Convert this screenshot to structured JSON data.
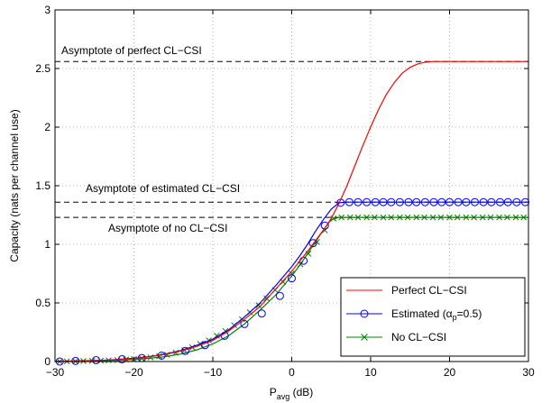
{
  "chart_data": {
    "type": "line",
    "xlabel": "P",
    "xlabel_sub": "avg",
    "xlabel_unit": " (dB)",
    "ylabel": "Capacity (nats per channel use)",
    "xlim": [
      -30,
      30
    ],
    "ylim": [
      0,
      3
    ],
    "xticks": [
      -30,
      -20,
      -10,
      0,
      10,
      20,
      30
    ],
    "yticks": [
      0,
      0.5,
      1,
      1.5,
      2,
      2.5,
      3
    ],
    "xtick_labels": [
      "−30",
      "−20",
      "−10",
      "0",
      "10",
      "20",
      "30"
    ],
    "ytick_labels": [
      "0",
      "0.5",
      "1",
      "1.5",
      "2",
      "2.5",
      "3"
    ],
    "grid": true,
    "legend_position": "bottom-right",
    "asymptotes": [
      {
        "label": "Asymptote of perfect CL−CSI",
        "y": 2.56
      },
      {
        "label": "Asymptote of estimated CL−CSI",
        "y": 1.36
      },
      {
        "label": "Asymptote of no CL−CSI",
        "y": 1.23
      }
    ],
    "series": [
      {
        "name": "Perfect CL−CSI",
        "color": "#ff0000",
        "marker": "none",
        "x": [
          -30,
          -28,
          -26,
          -24,
          -22,
          -20,
          -18,
          -16,
          -14,
          -12,
          -10,
          -8,
          -6,
          -4,
          -2,
          0,
          2,
          4,
          5,
          6,
          7,
          8,
          9,
          10,
          11,
          12,
          13,
          14,
          15,
          16,
          17,
          18,
          19,
          20,
          22,
          25,
          30
        ],
        "y": [
          0.0,
          0.003,
          0.006,
          0.01,
          0.015,
          0.025,
          0.04,
          0.06,
          0.09,
          0.13,
          0.18,
          0.26,
          0.36,
          0.47,
          0.62,
          0.77,
          0.94,
          1.12,
          1.22,
          1.35,
          1.5,
          1.67,
          1.84,
          2.0,
          2.15,
          2.28,
          2.38,
          2.46,
          2.51,
          2.54,
          2.555,
          2.56,
          2.56,
          2.56,
          2.56,
          2.56,
          2.56
        ]
      },
      {
        "name": "Estimated (αp=0.5)",
        "legend_main": "Estimated (α",
        "legend_sub": "p",
        "legend_tail": "=0.5)",
        "color": "#0000ff",
        "marker": "circle",
        "x": [
          -30,
          -28,
          -26,
          -24,
          -22,
          -20,
          -18,
          -16,
          -14,
          -12,
          -10,
          -8,
          -6,
          -4,
          -2,
          0,
          1,
          2,
          3,
          4,
          5,
          6,
          7,
          8,
          10,
          12,
          14,
          16,
          18,
          20,
          22,
          24,
          26,
          28,
          30
        ],
        "y": [
          0.0,
          0.004,
          0.007,
          0.011,
          0.018,
          0.028,
          0.043,
          0.064,
          0.095,
          0.14,
          0.19,
          0.27,
          0.38,
          0.5,
          0.65,
          0.81,
          0.9,
          1.0,
          1.11,
          1.21,
          1.3,
          1.355,
          1.36,
          1.36,
          1.36,
          1.36,
          1.36,
          1.36,
          1.36,
          1.36,
          1.36,
          1.36,
          1.36,
          1.36,
          1.36
        ],
        "marker_x": [
          -29.4,
          -27.4,
          -24.8,
          -21.5,
          -19.0,
          -16.5,
          -13.5,
          -11.0,
          -8.5,
          -6.0,
          -3.8,
          -1.5,
          0.0,
          1.5,
          2.7,
          4.2,
          6.2,
          7.3,
          8.4,
          9.5,
          10.6,
          11.6,
          12.6,
          13.7,
          14.8,
          15.8,
          16.9,
          18.0,
          19.0,
          20.0,
          21.1,
          22.1,
          23.2,
          24.3,
          25.3,
          26.4,
          27.4,
          28.5,
          29.6
        ],
        "marker_y": [
          0.0,
          0.005,
          0.012,
          0.02,
          0.03,
          0.05,
          0.09,
          0.14,
          0.22,
          0.32,
          0.41,
          0.56,
          0.71,
          0.86,
          1.01,
          1.16,
          1.355,
          1.36,
          1.36,
          1.36,
          1.36,
          1.36,
          1.36,
          1.36,
          1.36,
          1.36,
          1.36,
          1.36,
          1.36,
          1.36,
          1.36,
          1.36,
          1.36,
          1.36,
          1.36,
          1.36,
          1.36,
          1.36,
          1.36
        ]
      },
      {
        "name": "No CL−CSI",
        "color": "#008000",
        "marker": "x",
        "x": [
          -30,
          -28,
          -26,
          -24,
          -22,
          -20,
          -18,
          -16,
          -14,
          -12,
          -10,
          -8,
          -6,
          -4,
          -2,
          0,
          1,
          2,
          3,
          4,
          5,
          6,
          8,
          10,
          12,
          14,
          16,
          18,
          20,
          22,
          24,
          26,
          28,
          30
        ],
        "y": [
          0.0,
          0.002,
          0.004,
          0.007,
          0.011,
          0.018,
          0.028,
          0.042,
          0.065,
          0.1,
          0.15,
          0.22,
          0.32,
          0.44,
          0.57,
          0.73,
          0.82,
          0.92,
          1.02,
          1.12,
          1.21,
          1.23,
          1.23,
          1.23,
          1.23,
          1.23,
          1.23,
          1.23,
          1.23,
          1.23,
          1.23,
          1.23,
          1.23,
          1.23
        ],
        "marker_x": [
          -29.4,
          -28.5,
          -27.4,
          -26.4,
          -25.3,
          -24.2,
          -23.2,
          -22.1,
          -21.0,
          -20.0,
          -19.0,
          -17.9,
          -16.8,
          -15.8,
          -14.7,
          -13.6,
          -12.6,
          -11.6,
          -10.5,
          -9.5,
          -8.4,
          -7.3,
          -6.3,
          -5.3,
          -4.2,
          -3.2,
          -2.1,
          -1.1,
          0.0,
          1.1,
          2.1,
          3.2,
          4.2,
          5.3,
          6.3,
          7.4,
          8.4,
          9.5,
          10.5,
          11.6,
          12.6,
          13.7,
          14.7,
          15.8,
          16.8,
          17.9,
          18.9,
          20.0,
          21.0,
          22.1,
          23.1,
          24.2,
          25.2,
          26.3,
          27.3,
          28.4,
          29.4
        ],
        "marker_y": [
          0.0,
          0.001,
          0.002,
          0.004,
          0.006,
          0.008,
          0.01,
          0.013,
          0.017,
          0.021,
          0.027,
          0.035,
          0.045,
          0.058,
          0.075,
          0.095,
          0.12,
          0.15,
          0.18,
          0.22,
          0.26,
          0.31,
          0.36,
          0.42,
          0.48,
          0.54,
          0.61,
          0.68,
          0.75,
          0.83,
          0.92,
          1.02,
          1.12,
          1.22,
          1.23,
          1.23,
          1.23,
          1.23,
          1.23,
          1.23,
          1.23,
          1.23,
          1.23,
          1.23,
          1.23,
          1.23,
          1.23,
          1.23,
          1.23,
          1.23,
          1.23,
          1.23,
          1.23,
          1.23,
          1.23,
          1.23,
          1.23
        ]
      }
    ]
  }
}
